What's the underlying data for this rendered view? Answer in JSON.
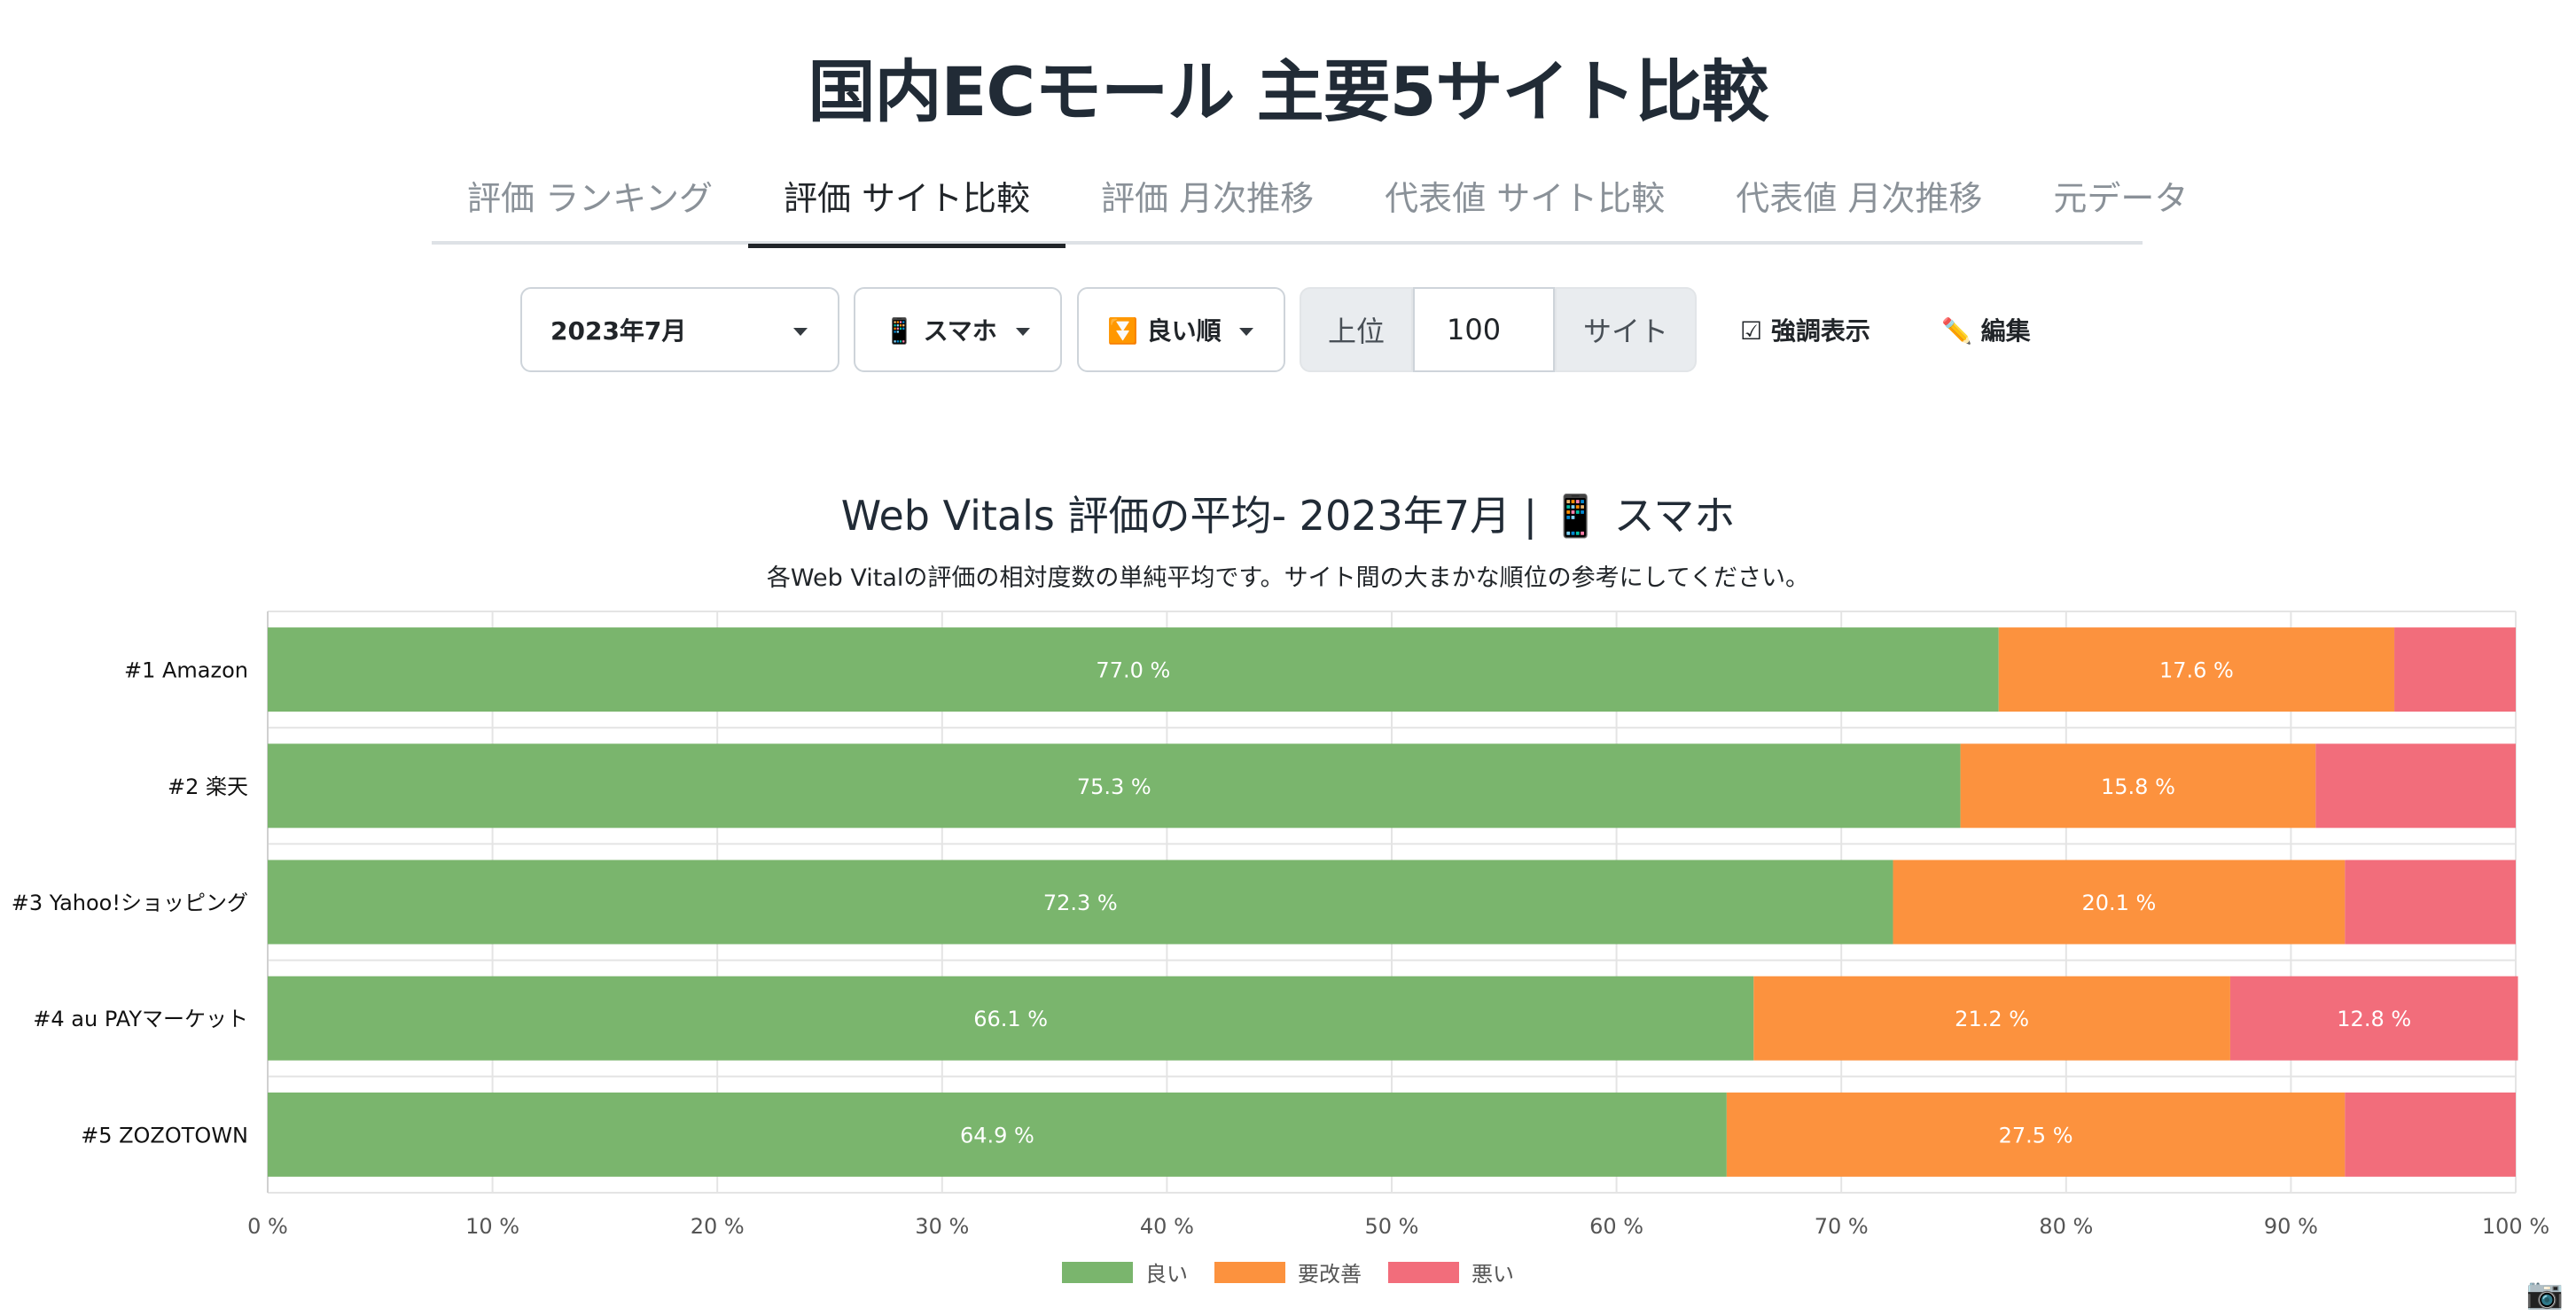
{
  "title": "国内ECモール 主要5サイト比較",
  "tabs": [
    {
      "label": "評価 ランキング",
      "active": false
    },
    {
      "label": "評価 サイト比較",
      "active": true
    },
    {
      "label": "評価 月次推移",
      "active": false
    },
    {
      "label": "代表値 サイト比較",
      "active": false
    },
    {
      "label": "代表値 月次推移",
      "active": false
    },
    {
      "label": "元データ",
      "active": false
    }
  ],
  "controls": {
    "month": "2023年7月",
    "device": "📱 スマホ",
    "sort": "⏬ 良い順",
    "top_prefix": "上位",
    "top_value": "100",
    "top_suffix": "サイト",
    "highlight": "☑ 強調表示",
    "edit": "✏️ 編集"
  },
  "chart_data": {
    "type": "bar",
    "orientation": "horizontal",
    "stacked": true,
    "title": "Web Vitals 評価の平均- 2023年7月 | 📱 スマホ",
    "subtitle": "各Web Vitalの評価の相対度数の単純平均です。サイト間の大まかな順位の参考にしてください。",
    "categories": [
      "#1 Amazon",
      "#2 楽天",
      "#3 Yahoo!ショッピング",
      "#4 au PAYマーケット",
      "#5 ZOZOTOWN"
    ],
    "series": [
      {
        "name": "良い",
        "color": "#7ab56d",
        "values": [
          77.0,
          75.3,
          72.3,
          66.1,
          64.9
        ],
        "labels": [
          "77.0 %",
          "75.3 %",
          "72.3 %",
          "66.1 %",
          "64.9 %"
        ]
      },
      {
        "name": "要改善",
        "color": "#fc923e",
        "values": [
          17.6,
          15.8,
          20.1,
          21.2,
          27.5
        ],
        "labels": [
          "17.6 %",
          "15.8 %",
          "20.1 %",
          "21.2 %",
          "27.5 %"
        ]
      },
      {
        "name": "悪い",
        "color": "#f26d7b",
        "values": [
          5.4,
          8.9,
          7.6,
          12.8,
          7.6
        ],
        "labels": [
          "",
          "",
          "",
          "12.8 %",
          ""
        ]
      }
    ],
    "xlim": [
      0,
      100
    ],
    "xticks": [
      "0 %",
      "10 %",
      "20 %",
      "30 %",
      "40 %",
      "50 %",
      "60 %",
      "70 %",
      "80 %",
      "90 %",
      "100 %"
    ],
    "grid": true,
    "legend_position": "bottom"
  },
  "icons": {
    "camera": "📷"
  }
}
